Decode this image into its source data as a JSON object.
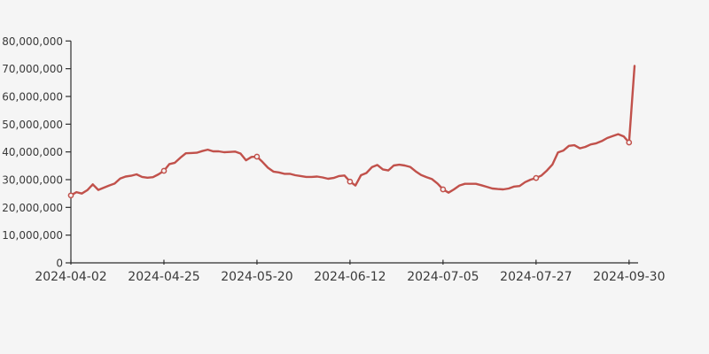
{
  "chart_data": {
    "type": "line",
    "title": "",
    "legend": "none",
    "grid": false,
    "x_tick_labels": [
      "2024-04-02",
      "2024-04-25",
      "2024-05-20",
      "2024-06-12",
      "2024-07-05",
      "2024-07-27",
      "2024-09-30"
    ],
    "x_tick_indices": [
      0,
      17,
      34,
      51,
      68,
      85,
      102
    ],
    "marker_indices": [
      0,
      17,
      34,
      51,
      68,
      85,
      102
    ],
    "y_tick_labels": [
      "0",
      "10,000,000",
      "20,000,000",
      "30,000,000",
      "40,000,000",
      "50,000,000",
      "60,000,000",
      "70,000,000",
      "80,000,000"
    ],
    "y_tick_values": [
      0,
      10000000,
      20000000,
      30000000,
      40000000,
      50000000,
      60000000,
      70000000,
      80000000
    ],
    "ylim": [
      0,
      80000000
    ],
    "values": [
      24300000,
      25500000,
      25000000,
      26200000,
      28300000,
      26300000,
      27100000,
      27900000,
      28600000,
      30400000,
      31100000,
      31400000,
      31900000,
      31000000,
      30700000,
      30900000,
      31900000,
      33200000,
      35600000,
      36100000,
      37900000,
      39500000,
      39600000,
      39700000,
      40300000,
      40800000,
      40200000,
      40200000,
      39900000,
      40000000,
      40100000,
      39400000,
      37000000,
      38200000,
      38300000,
      36400000,
      34300000,
      32900000,
      32600000,
      32100000,
      32100000,
      31600000,
      31300000,
      31000000,
      31000000,
      31100000,
      30800000,
      30300000,
      30600000,
      31300000,
      31500000,
      29300000,
      27900000,
      31600000,
      32400000,
      34500000,
      35300000,
      33700000,
      33300000,
      35100000,
      35400000,
      35100000,
      34600000,
      33000000,
      31700000,
      30900000,
      30200000,
      28600000,
      26500000,
      25300000,
      26500000,
      27900000,
      28500000,
      28500000,
      28500000,
      28000000,
      27400000,
      26800000,
      26600000,
      26500000,
      26800000,
      27500000,
      27700000,
      29100000,
      30000000,
      30600000,
      31500000,
      33300000,
      35500000,
      39800000,
      40500000,
      42200000,
      42400000,
      41300000,
      41800000,
      42700000,
      43100000,
      43900000,
      45000000,
      45700000,
      46400000,
      45600000,
      43400000,
      71000000
    ],
    "colors": {
      "line": "#c1514b",
      "marker_fill": "#f5f5f5",
      "axis": "#2f2f2f",
      "text": "#3a3a3a",
      "background": "#f5f5f5"
    }
  }
}
